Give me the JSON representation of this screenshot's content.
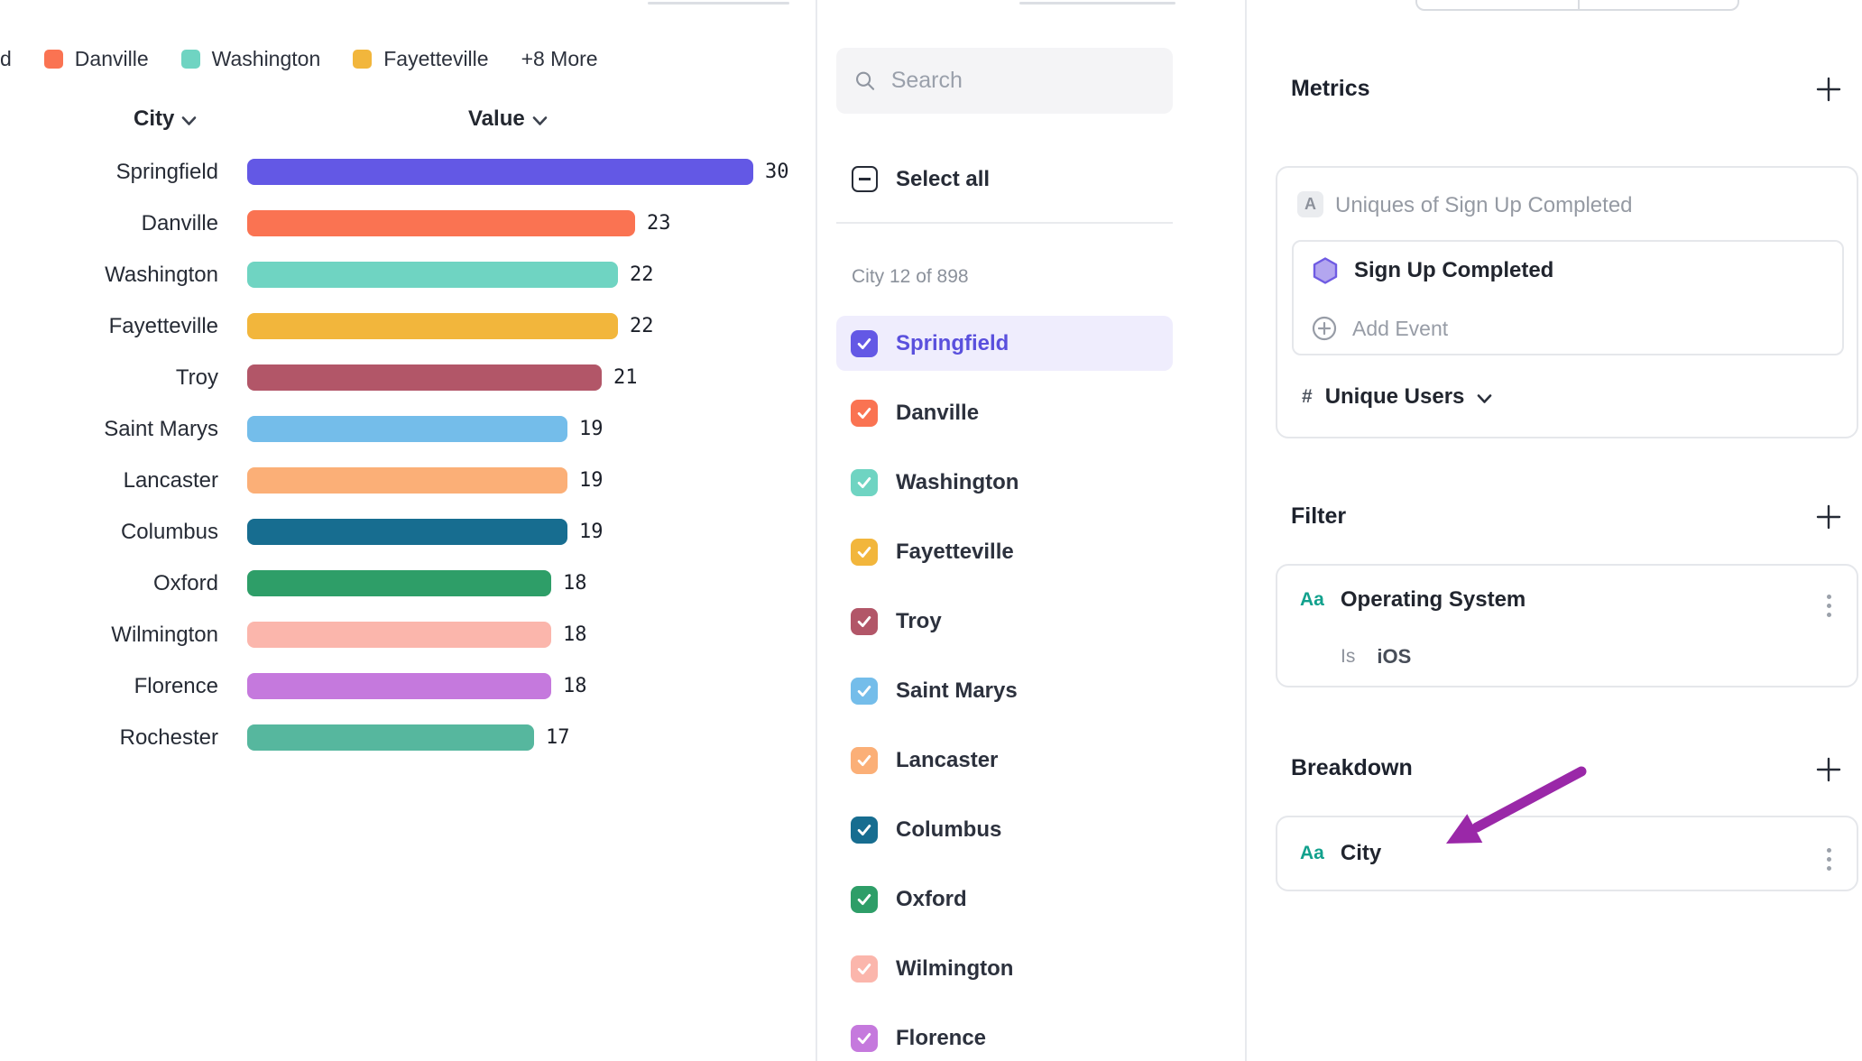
{
  "chart": {
    "legend": [
      {
        "label": "d",
        "color": null
      },
      {
        "label": "Danville",
        "color": "#fa7352"
      },
      {
        "label": "Washington",
        "color": "#6fd4c2"
      },
      {
        "label": "Fayetteville",
        "color": "#f2b63c"
      },
      {
        "label": "+8 More",
        "color": null
      }
    ],
    "col_city": "City",
    "col_value": "Value"
  },
  "chart_data": {
    "type": "bar",
    "orientation": "horizontal",
    "title": "",
    "xlabel": "Value",
    "ylabel": "City",
    "xlim": [
      0,
      30
    ],
    "categories": [
      "Springfield",
      "Danville",
      "Washington",
      "Fayetteville",
      "Troy",
      "Saint Marys",
      "Lancaster",
      "Columbus",
      "Oxford",
      "Wilmington",
      "Florence",
      "Rochester"
    ],
    "values": [
      30,
      23,
      22,
      22,
      21,
      19,
      19,
      19,
      18,
      18,
      18,
      17
    ],
    "colors": [
      "#6358e5",
      "#fa7352",
      "#6fd4c2",
      "#f2b63c",
      "#b25668",
      "#74bdea",
      "#fbaf77",
      "#176d90",
      "#2e9e68",
      "#fbb6ac",
      "#c579dd",
      "#56b79e"
    ]
  },
  "list": {
    "search_placeholder": "Search",
    "select_all": "Select all",
    "count_label": "City 12 of 898",
    "selected_bg": "#efedfd",
    "items": [
      {
        "label": "Springfield",
        "color": "#6358e5",
        "checked": true,
        "selected": true
      },
      {
        "label": "Danville",
        "color": "#fa7352",
        "checked": true,
        "selected": false
      },
      {
        "label": "Washington",
        "color": "#6fd4c2",
        "checked": true,
        "selected": false
      },
      {
        "label": "Fayetteville",
        "color": "#f2b63c",
        "checked": true,
        "selected": false
      },
      {
        "label": "Troy",
        "color": "#b25668",
        "checked": true,
        "selected": false
      },
      {
        "label": "Saint Marys",
        "color": "#74bdea",
        "checked": true,
        "selected": false
      },
      {
        "label": "Lancaster",
        "color": "#fbaf77",
        "checked": true,
        "selected": false
      },
      {
        "label": "Columbus",
        "color": "#176d90",
        "checked": true,
        "selected": false
      },
      {
        "label": "Oxford",
        "color": "#2e9e68",
        "checked": true,
        "selected": false
      },
      {
        "label": "Wilmington",
        "color": "#fbb6ac",
        "checked": true,
        "selected": false
      },
      {
        "label": "Florence",
        "color": "#c579dd",
        "checked": true,
        "selected": false
      }
    ]
  },
  "panel": {
    "metrics": {
      "title": "Metrics",
      "badge": "A",
      "summary": "Uniques of Sign Up Completed",
      "event": "Sign Up Completed",
      "add_event": "Add Event",
      "measure_prefix": "#",
      "measure": "Unique Users"
    },
    "filter": {
      "title": "Filter",
      "property_icon": "Aa",
      "property": "Operating System",
      "operator": "Is",
      "value": "iOS"
    },
    "breakdown": {
      "title": "Breakdown",
      "property_icon": "Aa",
      "property": "City"
    }
  },
  "annotation": {
    "type": "arrow",
    "color": "#9a28a8"
  }
}
